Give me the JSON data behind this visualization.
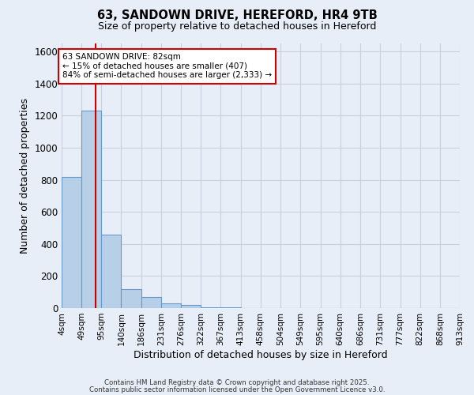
{
  "title_line1": "63, SANDOWN DRIVE, HEREFORD, HR4 9TB",
  "title_line2": "Size of property relative to detached houses in Hereford",
  "xlabel": "Distribution of detached houses by size in Hereford",
  "ylabel": "Number of detached properties",
  "bins": [
    4,
    49,
    95,
    140,
    186,
    231,
    276,
    322,
    367,
    413,
    458,
    504,
    549,
    595,
    640,
    686,
    731,
    777,
    822,
    868,
    913
  ],
  "counts": [
    820,
    1230,
    460,
    120,
    70,
    30,
    20,
    5,
    3,
    0,
    0,
    0,
    0,
    0,
    0,
    0,
    0,
    0,
    0,
    0
  ],
  "bar_color": "#b8cfe8",
  "bar_edge_color": "#6699cc",
  "background_color": "#e8eef7",
  "grid_color": "#c8d0de",
  "property_line_x": 82,
  "annotation_text": "63 SANDOWN DRIVE: 82sqm\n← 15% of detached houses are smaller (407)\n84% of semi-detached houses are larger (2,333) →",
  "annotation_box_color": "#ffffff",
  "annotation_box_edge_color": "#cc0000",
  "red_line_color": "#cc0000",
  "ylim": [
    0,
    1650
  ],
  "yticks": [
    0,
    200,
    400,
    600,
    800,
    1000,
    1200,
    1400,
    1600
  ],
  "footnote1": "Contains HM Land Registry data © Crown copyright and database right 2025.",
  "footnote2": "Contains public sector information licensed under the Open Government Licence v3.0."
}
